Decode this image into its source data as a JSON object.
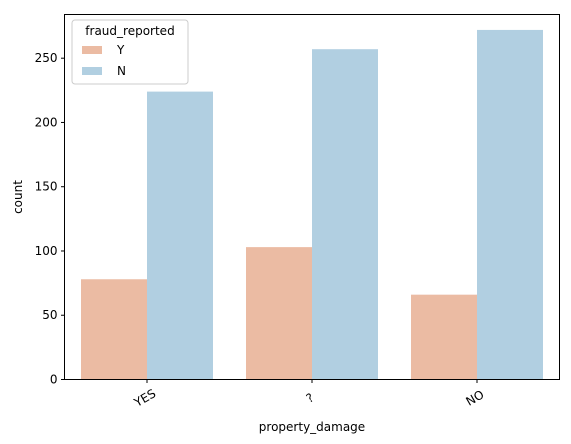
{
  "chart_data": {
    "type": "bar",
    "categories": [
      "YES",
      "?",
      "NO"
    ],
    "series": [
      {
        "name": "Y",
        "values": [
          78,
          103,
          66
        ],
        "color": "#ebbba3"
      },
      {
        "name": "N",
        "values": [
          224,
          257,
          272
        ],
        "color": "#b1cfe1"
      }
    ],
    "xlabel": "property_damage",
    "ylabel": "count",
    "ylim": [
      0,
      284
    ],
    "yticks": [
      0,
      50,
      100,
      150,
      200,
      250
    ],
    "legend": {
      "title": "fraud_reported",
      "placement": "top-left"
    },
    "x_tick_rotation_deg": 30,
    "grid": false
  }
}
